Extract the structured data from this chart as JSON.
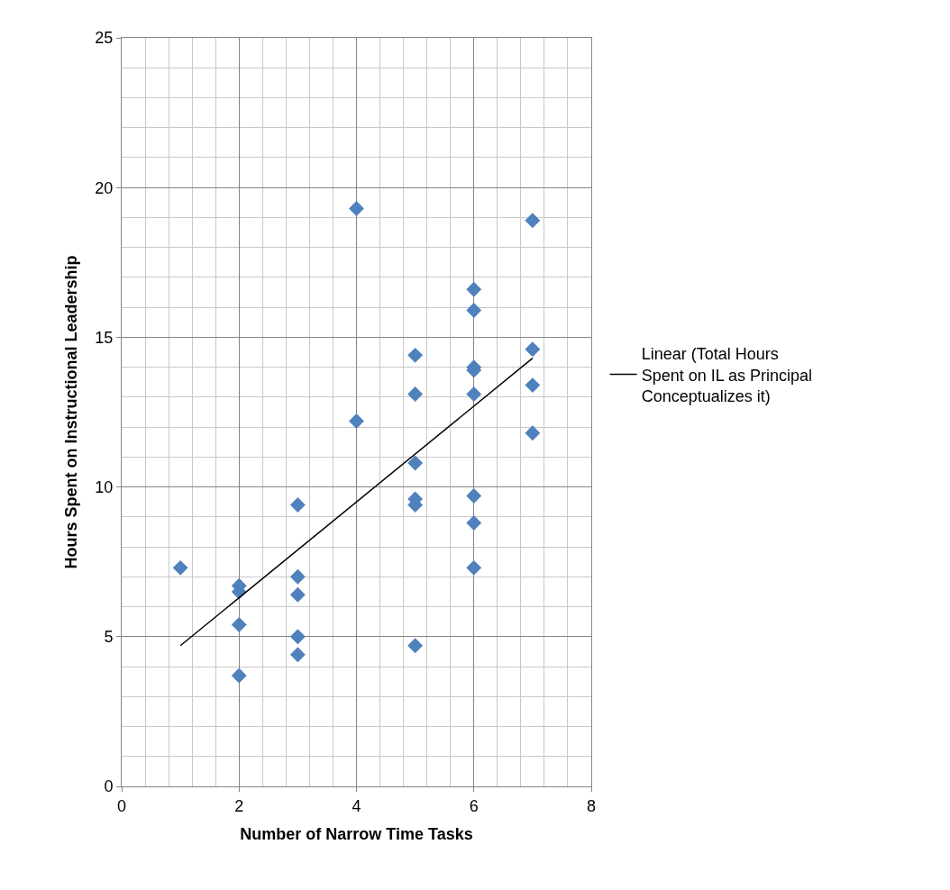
{
  "chart_data": {
    "type": "scatter",
    "xlabel": "Number of Narrow Time Tasks",
    "ylabel": "Hours Spent on Instructional Leadership",
    "xlim": [
      0,
      8
    ],
    "xticks": [
      0,
      2,
      4,
      6,
      8
    ],
    "ylim": [
      0,
      25
    ],
    "yticks": [
      0,
      5,
      10,
      15,
      20,
      25
    ],
    "grid": true,
    "legend": "right",
    "series": [
      {
        "marker": "diamond",
        "color": "#4f81bd",
        "x": [
          1,
          2,
          2,
          2,
          2,
          3,
          3,
          3,
          3,
          3,
          4,
          4,
          5,
          5,
          5,
          5,
          5,
          5,
          6,
          6,
          6,
          6,
          6,
          6,
          6,
          6,
          7,
          7,
          7,
          7
        ],
        "values": [
          7.3,
          6.7,
          6.5,
          5.4,
          3.7,
          9.4,
          7.0,
          6.4,
          5.0,
          4.4,
          19.3,
          12.2,
          14.4,
          13.1,
          10.8,
          9.6,
          9.4,
          4.7,
          16.6,
          15.9,
          14.0,
          13.9,
          13.1,
          9.7,
          8.8,
          7.3,
          18.9,
          14.6,
          13.4,
          11.8
        ]
      },
      {
        "type": "line",
        "name": "Linear (Total Hours Spent on IL as Principal Conceptualizes it)",
        "marker": "none",
        "line_style": "solid",
        "color": "#000000",
        "x": [
          1,
          7
        ],
        "values": [
          4.7,
          14.3
        ]
      }
    ]
  }
}
